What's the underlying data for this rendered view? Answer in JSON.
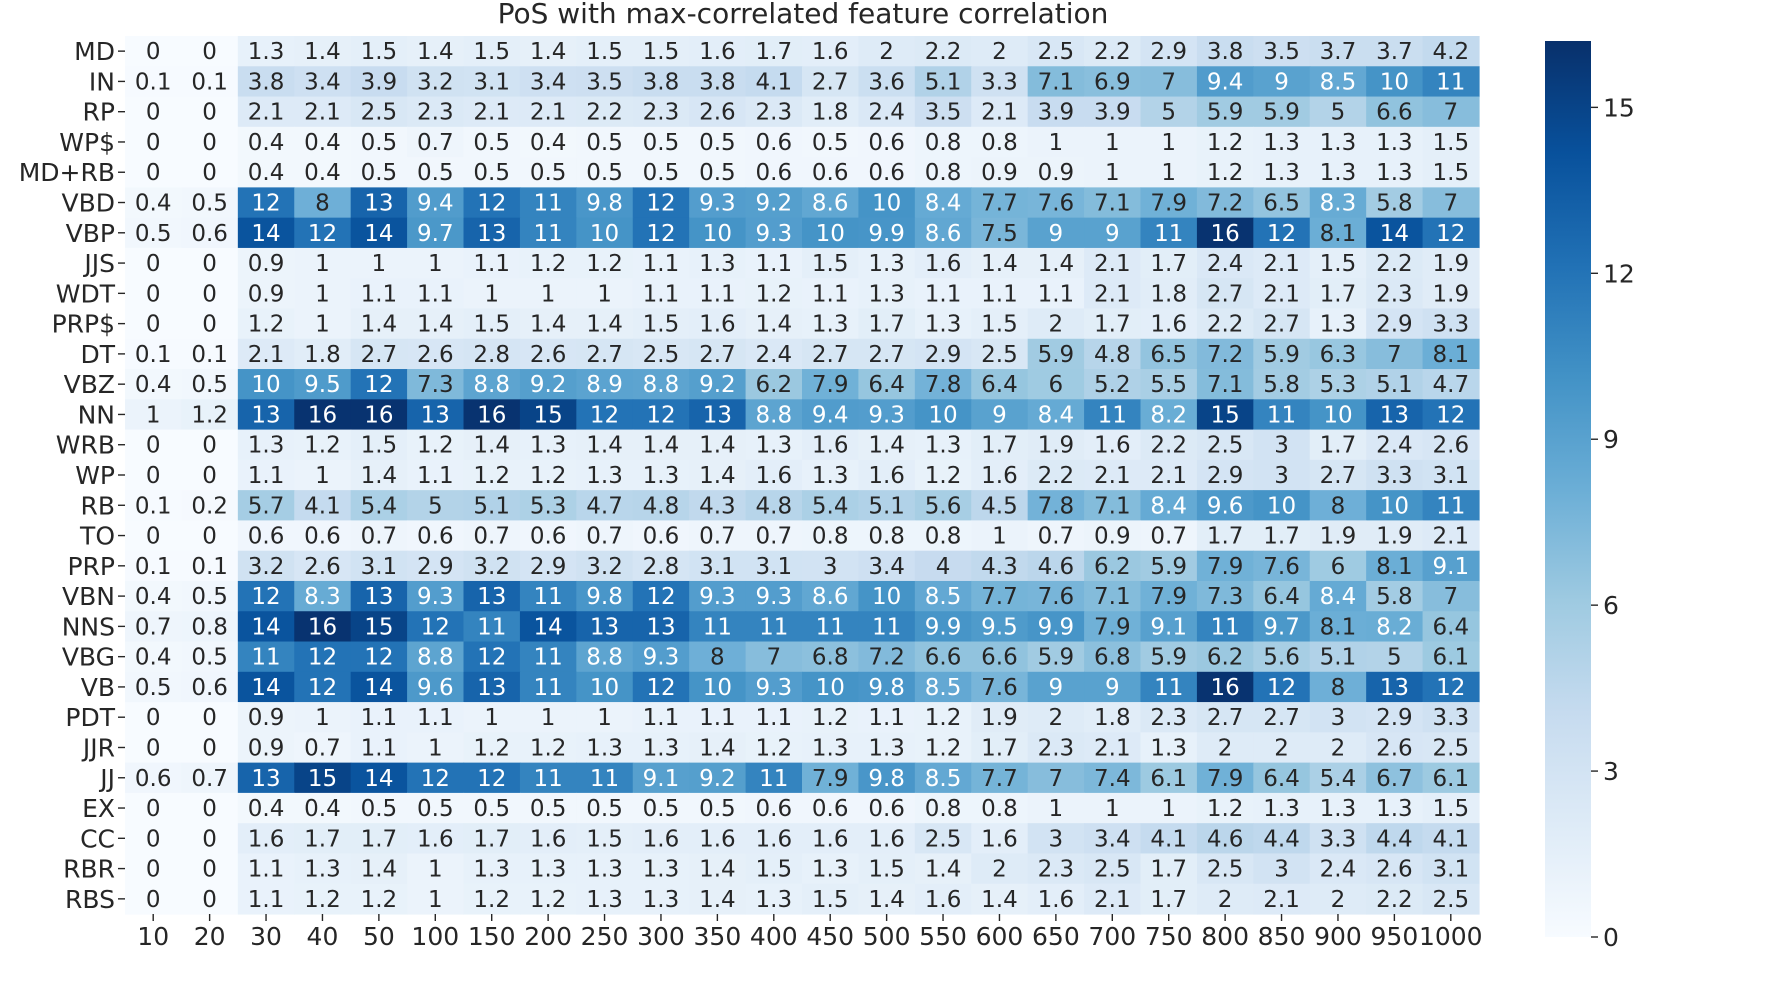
{
  "chart_data": {
    "type": "heatmap",
    "title": "PoS with max-correlated feature correlation",
    "xlabel": "",
    "ylabel": "",
    "colormap": "Blues",
    "vmin": 0,
    "vmax": 16.2,
    "colorbar_ticks": [
      0,
      3,
      6,
      9,
      12,
      15
    ],
    "x": [
      "10",
      "20",
      "30",
      "40",
      "50",
      "100",
      "150",
      "200",
      "250",
      "300",
      "350",
      "400",
      "450",
      "500",
      "550",
      "600",
      "650",
      "700",
      "750",
      "800",
      "850",
      "900",
      "950",
      "1000"
    ],
    "y": [
      "MD",
      "IN",
      "RP",
      "WP$",
      "MD+RB",
      "VBD",
      "VBP",
      "JJS",
      "WDT",
      "PRP$",
      "DT",
      "VBZ",
      "NN",
      "WRB",
      "WP",
      "RB",
      "TO",
      "PRP",
      "VBN",
      "NNS",
      "VBG",
      "VB",
      "PDT",
      "JJR",
      "JJ",
      "EX",
      "CC",
      "RBR",
      "RBS"
    ],
    "values": [
      [
        0,
        0,
        1.3,
        1.4,
        1.5,
        1.4,
        1.5,
        1.4,
        1.5,
        1.5,
        1.6,
        1.7,
        1.6,
        2,
        2.2,
        2,
        2.5,
        2.2,
        2.9,
        3.8,
        3.5,
        3.7,
        3.7,
        4.2
      ],
      [
        0.1,
        0.1,
        3.8,
        3.4,
        3.9,
        3.2,
        3.1,
        3.4,
        3.5,
        3.8,
        3.8,
        4.1,
        2.7,
        3.6,
        5.1,
        3.3,
        7.1,
        6.9,
        7,
        9.4,
        9,
        8.5,
        10,
        11
      ],
      [
        0,
        0,
        2.1,
        2.1,
        2.5,
        2.3,
        2.1,
        2.1,
        2.2,
        2.3,
        2.6,
        2.3,
        1.8,
        2.4,
        3.5,
        2.1,
        3.9,
        3.9,
        5,
        5.9,
        5.9,
        5,
        6.6,
        7
      ],
      [
        0,
        0,
        0.4,
        0.4,
        0.5,
        0.7,
        0.5,
        0.4,
        0.5,
        0.5,
        0.5,
        0.6,
        0.5,
        0.6,
        0.8,
        0.8,
        1,
        1,
        1,
        1.2,
        1.3,
        1.3,
        1.3,
        1.5
      ],
      [
        0,
        0,
        0.4,
        0.4,
        0.5,
        0.5,
        0.5,
        0.5,
        0.5,
        0.5,
        0.5,
        0.6,
        0.6,
        0.6,
        0.8,
        0.9,
        0.9,
        1,
        1,
        1.2,
        1.3,
        1.3,
        1.3,
        1.5
      ],
      [
        0.4,
        0.5,
        12,
        8,
        13,
        9.4,
        12,
        11,
        9.8,
        12,
        9.3,
        9.2,
        8.6,
        10,
        8.4,
        7.7,
        7.6,
        7.1,
        7.9,
        7.2,
        6.5,
        8.3,
        5.8,
        7
      ],
      [
        0.5,
        0.6,
        14,
        12,
        14,
        9.7,
        13,
        11,
        10,
        12,
        10,
        9.3,
        10,
        9.9,
        8.6,
        7.5,
        9,
        9,
        11,
        16,
        12,
        8.1,
        14,
        12
      ],
      [
        0,
        0,
        0.9,
        1,
        1,
        1,
        1.1,
        1.2,
        1.2,
        1.1,
        1.3,
        1.1,
        1.5,
        1.3,
        1.6,
        1.4,
        1.4,
        2.1,
        1.7,
        2.4,
        2.1,
        1.5,
        2.2,
        1.9
      ],
      [
        0,
        0,
        0.9,
        1,
        1.1,
        1.1,
        1,
        1,
        1,
        1.1,
        1.1,
        1.2,
        1.1,
        1.3,
        1.1,
        1.1,
        1.1,
        2.1,
        1.8,
        2.7,
        2.1,
        1.7,
        2.3,
        1.9
      ],
      [
        0,
        0,
        1.2,
        1,
        1.4,
        1.4,
        1.5,
        1.4,
        1.4,
        1.5,
        1.6,
        1.4,
        1.3,
        1.7,
        1.3,
        1.5,
        2,
        1.7,
        1.6,
        2.2,
        2.7,
        1.3,
        2.9,
        3.3
      ],
      [
        0.1,
        0.1,
        2.1,
        1.8,
        2.7,
        2.6,
        2.8,
        2.6,
        2.7,
        2.5,
        2.7,
        2.4,
        2.7,
        2.7,
        2.9,
        2.5,
        5.9,
        4.8,
        6.5,
        7.2,
        5.9,
        6.3,
        7,
        8.1
      ],
      [
        0.4,
        0.5,
        10,
        9.5,
        12,
        7.3,
        8.8,
        9.2,
        8.9,
        8.8,
        9.2,
        6.2,
        7.9,
        6.4,
        7.8,
        6.4,
        6,
        5.2,
        5.5,
        7.1,
        5.8,
        5.3,
        5.1,
        4.7
      ],
      [
        1,
        1.2,
        13,
        16,
        16,
        13,
        16,
        15,
        12,
        12,
        13,
        8.8,
        9.4,
        9.3,
        10,
        9,
        8.4,
        11,
        8.2,
        15,
        11,
        10,
        13,
        12
      ],
      [
        0,
        0,
        1.3,
        1.2,
        1.5,
        1.2,
        1.4,
        1.3,
        1.4,
        1.4,
        1.4,
        1.3,
        1.6,
        1.4,
        1.3,
        1.7,
        1.9,
        1.6,
        2.2,
        2.5,
        3,
        1.7,
        2.4,
        2.6
      ],
      [
        0,
        0,
        1.1,
        1,
        1.4,
        1.1,
        1.2,
        1.2,
        1.3,
        1.3,
        1.4,
        1.6,
        1.3,
        1.6,
        1.2,
        1.6,
        2.2,
        2.1,
        2.1,
        2.9,
        3,
        2.7,
        3.3,
        3.1
      ],
      [
        0.1,
        0.2,
        5.7,
        4.1,
        5.4,
        5,
        5.1,
        5.3,
        4.7,
        4.8,
        4.3,
        4.8,
        5.4,
        5.1,
        5.6,
        4.5,
        7.8,
        7.1,
        8.4,
        9.6,
        10,
        8,
        10,
        11
      ],
      [
        0,
        0,
        0.6,
        0.6,
        0.7,
        0.6,
        0.7,
        0.6,
        0.7,
        0.6,
        0.7,
        0.7,
        0.8,
        0.8,
        0.8,
        1,
        0.7,
        0.9,
        0.7,
        1.7,
        1.7,
        1.9,
        1.9,
        2.1
      ],
      [
        0.1,
        0.1,
        3.2,
        2.6,
        3.1,
        2.9,
        3.2,
        2.9,
        3.2,
        2.8,
        3.1,
        3.1,
        3,
        3.4,
        4,
        4.3,
        4.6,
        6.2,
        5.9,
        7.9,
        7.6,
        6,
        8.1,
        9.1
      ],
      [
        0.4,
        0.5,
        12,
        8.3,
        13,
        9.3,
        13,
        11,
        9.8,
        12,
        9.3,
        9.3,
        8.6,
        10,
        8.5,
        7.7,
        7.6,
        7.1,
        7.9,
        7.3,
        6.4,
        8.4,
        5.8,
        7
      ],
      [
        0.7,
        0.8,
        14,
        16,
        15,
        12,
        11,
        14,
        13,
        13,
        11,
        11,
        11,
        11,
        9.9,
        9.5,
        9.9,
        7.9,
        9.1,
        11,
        9.7,
        8.1,
        8.2,
        6.4
      ],
      [
        0.4,
        0.5,
        11,
        12,
        12,
        8.8,
        12,
        11,
        8.8,
        9.3,
        8,
        7,
        6.8,
        7.2,
        6.6,
        6.6,
        5.9,
        6.8,
        5.9,
        6.2,
        5.6,
        5.1,
        5,
        6.1
      ],
      [
        0.5,
        0.6,
        14,
        12,
        14,
        9.6,
        13,
        11,
        10,
        12,
        10,
        9.3,
        10,
        9.8,
        8.5,
        7.6,
        9,
        9,
        11,
        16,
        12,
        8,
        13,
        12
      ],
      [
        0,
        0,
        0.9,
        1,
        1.1,
        1.1,
        1,
        1,
        1,
        1.1,
        1.1,
        1.1,
        1.2,
        1.1,
        1.2,
        1.9,
        2,
        1.8,
        2.3,
        2.7,
        2.7,
        3,
        2.9,
        3.3
      ],
      [
        0,
        0,
        0.9,
        0.7,
        1.1,
        1,
        1.2,
        1.2,
        1.3,
        1.3,
        1.4,
        1.2,
        1.3,
        1.3,
        1.2,
        1.7,
        2.3,
        2.1,
        1.3,
        2,
        2,
        2,
        2.6,
        2.5
      ],
      [
        0.6,
        0.7,
        13,
        15,
        14,
        12,
        12,
        11,
        11,
        9.1,
        9.2,
        11,
        7.9,
        9.8,
        8.5,
        7.7,
        7,
        7.4,
        6.1,
        7.9,
        6.4,
        5.4,
        6.7,
        6.1
      ],
      [
        0,
        0,
        0.4,
        0.4,
        0.5,
        0.5,
        0.5,
        0.5,
        0.5,
        0.5,
        0.5,
        0.6,
        0.6,
        0.6,
        0.8,
        0.8,
        1,
        1,
        1,
        1.2,
        1.3,
        1.3,
        1.3,
        1.5
      ],
      [
        0,
        0,
        1.6,
        1.7,
        1.7,
        1.6,
        1.7,
        1.6,
        1.5,
        1.6,
        1.6,
        1.6,
        1.6,
        1.6,
        2.5,
        1.6,
        3,
        3.4,
        4.1,
        4.6,
        4.4,
        3.3,
        4.4,
        4.1
      ],
      [
        0,
        0,
        1.1,
        1.3,
        1.4,
        1,
        1.3,
        1.3,
        1.3,
        1.3,
        1.4,
        1.5,
        1.3,
        1.5,
        1.4,
        2,
        2.3,
        2.5,
        1.7,
        2.5,
        3,
        2.4,
        2.6,
        3.1
      ],
      [
        0,
        0,
        1.1,
        1.2,
        1.2,
        1,
        1.2,
        1.2,
        1.3,
        1.3,
        1.4,
        1.3,
        1.5,
        1.4,
        1.6,
        1.4,
        1.6,
        2.1,
        1.7,
        2,
        2.1,
        2,
        2.2,
        2.5
      ]
    ]
  }
}
